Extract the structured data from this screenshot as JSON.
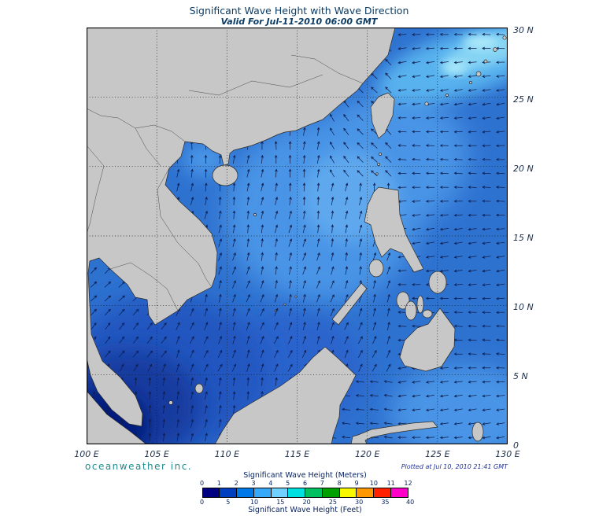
{
  "header": {
    "title": "Significant Wave Height with Wave Direction",
    "subtitle": "Valid For Jul-11-2010 06:00 GMT"
  },
  "map": {
    "lat_labels": [
      "30 N",
      "25 N",
      "20 N",
      "15 N",
      "10 N",
      "5 N",
      "0"
    ],
    "lon_labels": [
      "100 E",
      "105 E",
      "110 E",
      "115 E",
      "120 E",
      "125 E",
      "130 E"
    ]
  },
  "footer": {
    "branding": "oceanweather inc.",
    "plotted": "Plotted at Jul 10, 2010 21:41 GMT"
  },
  "legend": {
    "meters_title": "Significant Wave Height (Meters)",
    "feet_title": "Significant Wave Height (Feet)",
    "meters_ticks": [
      "0",
      "1",
      "2",
      "3",
      "4",
      "5",
      "6",
      "7",
      "8",
      "9",
      "10",
      "11",
      "12"
    ],
    "feet_ticks": [
      "0",
      "5",
      "10",
      "15",
      "20",
      "25",
      "30",
      "35",
      "40"
    ],
    "colors": [
      "#000080",
      "#0040c0",
      "#0078e8",
      "#38a8f8",
      "#70d0ff",
      "#00e0e0",
      "#00c060",
      "#00a000",
      "#f8f800",
      "#ff9800",
      "#ff2000",
      "#ff00c8"
    ]
  },
  "palette": {
    "land": "#c7c7c7",
    "ocean_base": "#2e72d0"
  }
}
